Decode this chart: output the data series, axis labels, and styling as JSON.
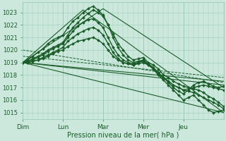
{
  "background_color": "#cce8dd",
  "plot_bg_color": "#cce8dd",
  "grid_color": "#99ccbb",
  "line_color": "#1a5c28",
  "marker_color": "#1a5c28",
  "xlabel": "Pression niveau de la mer( hPa )",
  "ylim": [
    1014.5,
    1023.8
  ],
  "yticks": [
    1015,
    1016,
    1017,
    1018,
    1019,
    1020,
    1021,
    1022,
    1023
  ],
  "day_labels": [
    "Dim",
    "Lun",
    "Mar",
    "Mer",
    "Jeu"
  ],
  "day_positions": [
    0,
    24,
    48,
    72,
    96
  ],
  "total_hours": 120,
  "series": [
    {
      "x": [
        0,
        3,
        6,
        9,
        12,
        15,
        18,
        21,
        24,
        27,
        30,
        33,
        36,
        39,
        42,
        45,
        48,
        51,
        54,
        57,
        60,
        63,
        66,
        69,
        72,
        75,
        78,
        81,
        84,
        87,
        90,
        93,
        96,
        99,
        102,
        105,
        108,
        111,
        114,
        117,
        120
      ],
      "y": [
        1019.0,
        1019.1,
        1019.3,
        1019.5,
        1019.7,
        1020.0,
        1020.2,
        1020.4,
        1020.6,
        1021.2,
        1021.8,
        1022.2,
        1022.6,
        1022.9,
        1023.2,
        1023.0,
        1022.7,
        1022.0,
        1021.3,
        1020.5,
        1020.0,
        1019.5,
        1019.2,
        1019.3,
        1019.4,
        1019.0,
        1018.8,
        1018.5,
        1018.0,
        1017.8,
        1017.5,
        1017.3,
        1017.1,
        1017.0,
        1016.9,
        1016.8,
        1016.6,
        1016.3,
        1016.1,
        1015.8,
        1015.5
      ],
      "style": "solid",
      "marker": "D",
      "markersize": 2.0,
      "linewidth": 1.0
    },
    {
      "x": [
        0,
        3,
        6,
        9,
        12,
        15,
        18,
        21,
        24,
        27,
        30,
        33,
        36,
        39,
        42,
        45,
        48,
        51,
        54,
        57,
        60,
        63,
        66,
        69,
        72,
        75,
        78,
        81,
        84,
        87,
        90,
        93,
        96,
        99,
        102,
        105,
        108,
        111,
        114,
        117,
        120
      ],
      "y": [
        1019.0,
        1019.2,
        1019.5,
        1019.8,
        1020.1,
        1020.5,
        1020.8,
        1021.0,
        1021.2,
        1021.8,
        1022.3,
        1022.6,
        1023.0,
        1023.3,
        1023.5,
        1023.2,
        1022.8,
        1022.0,
        1021.0,
        1020.2,
        1019.6,
        1019.2,
        1019.0,
        1019.1,
        1019.2,
        1018.9,
        1018.5,
        1018.0,
        1017.6,
        1017.2,
        1016.8,
        1016.4,
        1016.0,
        1016.2,
        1016.4,
        1016.0,
        1015.6,
        1015.2,
        1015.0,
        1015.1,
        1015.2
      ],
      "style": "solid",
      "marker": "D",
      "markersize": 2.0,
      "linewidth": 1.0
    },
    {
      "x": [
        0,
        3,
        6,
        9,
        12,
        15,
        18,
        21,
        24,
        27,
        30,
        33,
        36,
        39,
        42,
        45,
        48,
        51,
        54,
        57,
        60,
        63,
        66,
        69,
        72,
        75,
        78,
        81,
        84,
        87,
        90,
        93,
        96,
        99,
        102,
        105,
        108,
        111,
        114,
        117,
        120
      ],
      "y": [
        1019.0,
        1019.0,
        1019.1,
        1019.2,
        1019.4,
        1019.6,
        1019.8,
        1020.0,
        1020.2,
        1020.7,
        1021.0,
        1021.3,
        1021.5,
        1021.7,
        1021.8,
        1021.6,
        1021.2,
        1020.5,
        1019.8,
        1019.3,
        1019.0,
        1018.9,
        1018.8,
        1019.0,
        1019.1,
        1018.8,
        1018.5,
        1018.0,
        1017.8,
        1017.5,
        1017.2,
        1017.0,
        1016.8,
        1016.7,
        1016.6,
        1016.4,
        1016.2,
        1016.0,
        1015.8,
        1015.6,
        1015.3
      ],
      "style": "solid",
      "marker": "D",
      "markersize": 2.0,
      "linewidth": 1.0
    },
    {
      "x": [
        0,
        3,
        6,
        9,
        12,
        15,
        18,
        21,
        24,
        27,
        30,
        33,
        36,
        39,
        42,
        45,
        48,
        51,
        54,
        57,
        60,
        63,
        66,
        69,
        72,
        75,
        78,
        81,
        84,
        87,
        90,
        93,
        96,
        99,
        102,
        105,
        108,
        111,
        114,
        117,
        120
      ],
      "y": [
        1019.0,
        1019.1,
        1019.2,
        1019.4,
        1019.6,
        1019.9,
        1020.1,
        1020.3,
        1020.5,
        1021.0,
        1021.5,
        1021.9,
        1022.2,
        1022.4,
        1022.5,
        1022.2,
        1021.8,
        1021.0,
        1020.2,
        1019.6,
        1019.2,
        1019.0,
        1018.9,
        1019.0,
        1019.2,
        1018.9,
        1018.6,
        1018.2,
        1017.8,
        1017.4,
        1017.0,
        1016.7,
        1016.5,
        1016.8,
        1017.2,
        1017.4,
        1017.5,
        1017.3,
        1017.1,
        1017.0,
        1017.1
      ],
      "style": "solid",
      "marker": "D",
      "markersize": 2.0,
      "linewidth": 1.0
    },
    {
      "x": [
        0,
        3,
        6,
        9,
        12,
        15,
        18,
        21,
        24,
        27,
        30,
        33,
        36,
        39,
        42,
        45,
        48,
        51,
        54,
        57,
        60,
        63,
        66,
        69,
        72,
        75,
        78,
        81,
        84,
        87,
        90,
        93,
        96,
        99,
        102,
        105,
        108,
        111,
        114,
        117,
        120
      ],
      "y": [
        1019.0,
        1019.0,
        1019.1,
        1019.2,
        1019.3,
        1019.5,
        1019.7,
        1019.9,
        1020.0,
        1020.3,
        1020.5,
        1020.7,
        1020.8,
        1020.9,
        1021.0,
        1020.8,
        1020.5,
        1020.0,
        1019.5,
        1019.2,
        1019.0,
        1018.9,
        1018.8,
        1018.9,
        1019.0,
        1018.8,
        1018.5,
        1018.2,
        1017.8,
        1017.5,
        1017.2,
        1017.0,
        1016.8,
        1016.9,
        1017.0,
        1017.1,
        1017.2,
        1017.1,
        1017.0,
        1016.9,
        1016.8
      ],
      "style": "solid",
      "marker": "D",
      "markersize": 2.0,
      "linewidth": 1.0
    },
    {
      "x": [
        0,
        120
      ],
      "y": [
        1019.0,
        1015.0
      ],
      "style": "solid",
      "marker": null,
      "markersize": 0,
      "linewidth": 0.8
    },
    {
      "x": [
        0,
        120
      ],
      "y": [
        1019.0,
        1017.2
      ],
      "style": "solid",
      "marker": null,
      "markersize": 0,
      "linewidth": 0.8
    },
    {
      "x": [
        0,
        120
      ],
      "y": [
        1019.0,
        1017.5
      ],
      "style": "solid",
      "marker": null,
      "markersize": 0,
      "linewidth": 0.8
    },
    {
      "x": [
        0,
        48,
        120
      ],
      "y": [
        1019.0,
        1023.3,
        1017.0
      ],
      "style": "solid",
      "marker": null,
      "markersize": 0,
      "linewidth": 0.8
    },
    {
      "x": [
        0,
        36,
        120
      ],
      "y": [
        1019.0,
        1023.2,
        1015.0
      ],
      "style": "solid",
      "marker": null,
      "markersize": 0,
      "linewidth": 0.8
    },
    {
      "x": [
        0,
        120
      ],
      "y": [
        1019.5,
        1017.8
      ],
      "style": "dashed",
      "marker": null,
      "markersize": 0,
      "linewidth": 0.7
    },
    {
      "x": [
        0,
        120
      ],
      "y": [
        1020.0,
        1017.4
      ],
      "style": "dashed",
      "marker": null,
      "markersize": 0,
      "linewidth": 0.7
    }
  ]
}
